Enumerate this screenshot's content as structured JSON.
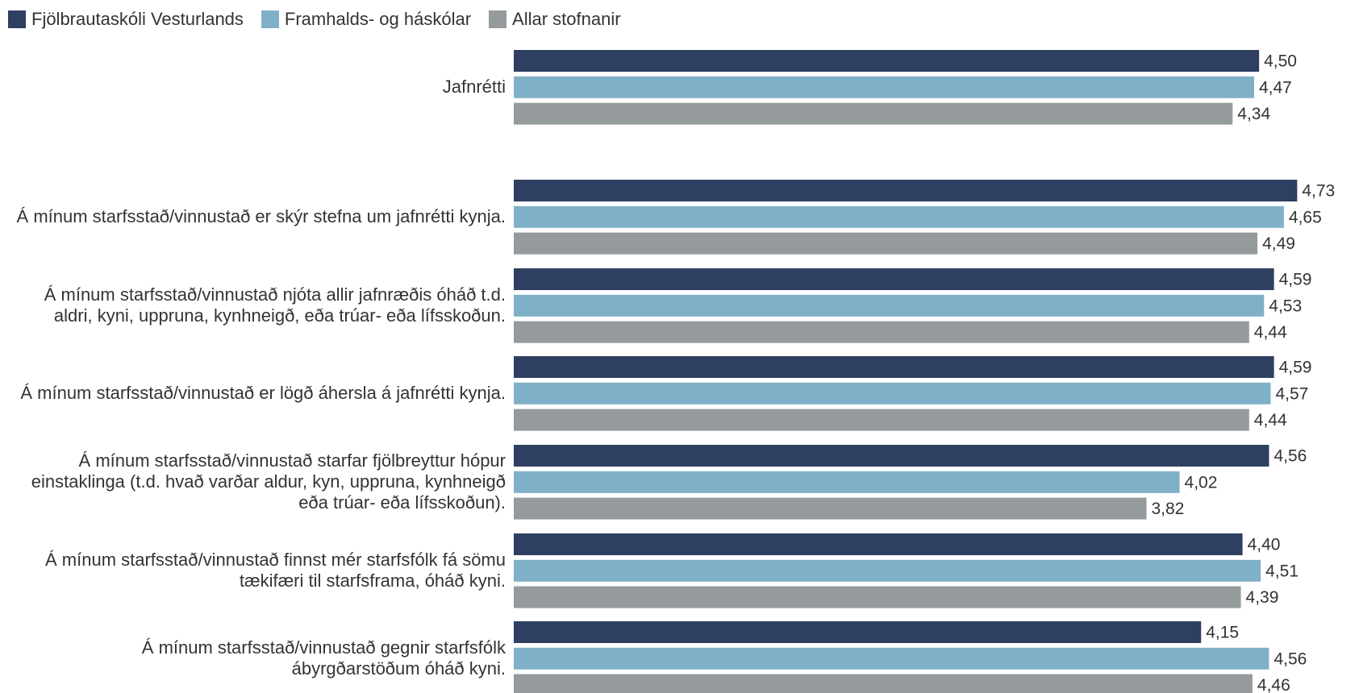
{
  "chart_data": {
    "type": "bar",
    "orientation": "horizontal",
    "legend_position": "top-left",
    "grid": false,
    "xlim": [
      0,
      4.85
    ],
    "series": [
      {
        "name": "Fjölbrautaskóli Vesturlands",
        "color": "#2e3f61"
      },
      {
        "name": "Framhalds- og háskólar",
        "color": "#80b0c8"
      },
      {
        "name": "Allar stofnanir",
        "color": "#959a9c"
      }
    ],
    "categories": [
      {
        "label": "Jafnrétti",
        "values": [
          4.5,
          4.47,
          4.34
        ]
      },
      {
        "label": "Á mínum starfsstað/vinnustað er skýr stefna um jafnrétti kynja.",
        "values": [
          4.73,
          4.65,
          4.49
        ]
      },
      {
        "label": "Á mínum starfsstað/vinnustað njóta allir jafnræðis óháð t.d. aldri, kyni, uppruna, kynhneigð, eða trúar- eða lífsskoðun.",
        "values": [
          4.59,
          4.53,
          4.44
        ]
      },
      {
        "label": "Á mínum starfsstað/vinnustað er lögð áhersla á jafnrétti kynja.",
        "values": [
          4.59,
          4.57,
          4.44
        ]
      },
      {
        "label": "Á mínum starfsstað/vinnustað starfar fjölbreyttur hópur einstaklinga (t.d. hvað varðar aldur, kyn, uppruna, kynhneigð eða trúar- eða lífsskoðun).",
        "values": [
          4.56,
          4.02,
          3.82
        ]
      },
      {
        "label": "Á mínum starfsstað/vinnustað finnst mér starfsfólk fá sömu tækifæri til starfsframa, óháð kyni.",
        "values": [
          4.4,
          4.51,
          4.39
        ]
      },
      {
        "label": "Á mínum starfsstað/vinnustað gegnir starfsfólk ábyrgðarstöðum óháð kyni.",
        "values": [
          4.15,
          4.56,
          4.46
        ]
      }
    ]
  }
}
